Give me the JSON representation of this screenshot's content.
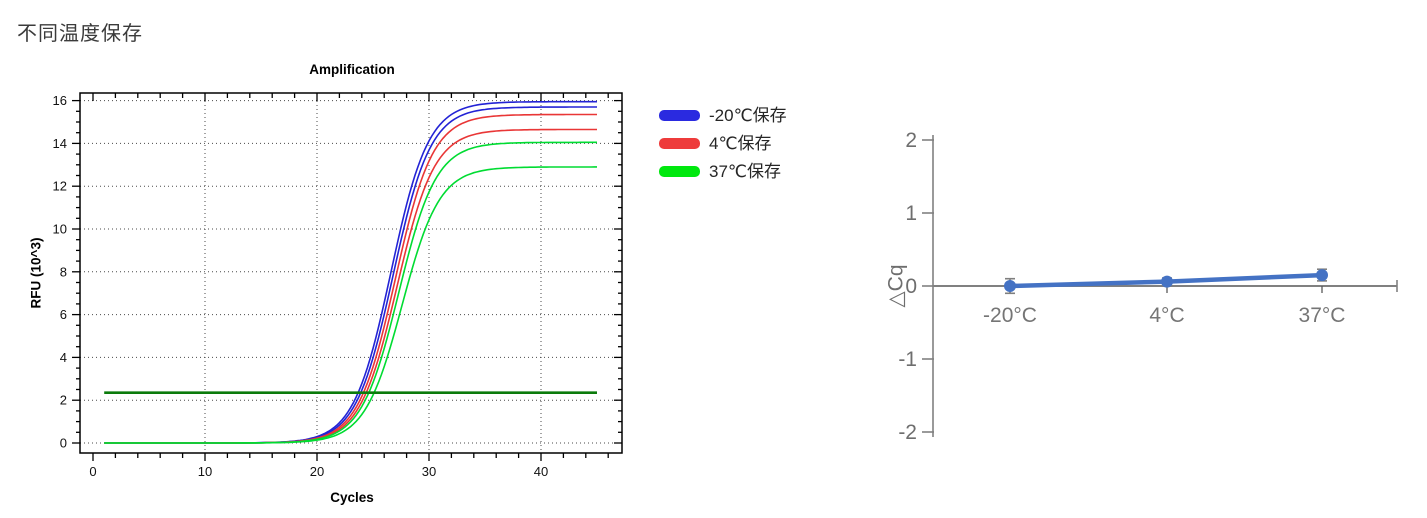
{
  "page": {
    "title": "不同温度保存"
  },
  "legend": {
    "items": [
      {
        "label": "-20℃保存",
        "color": "#2a2ae0"
      },
      {
        "label": "4℃保存",
        "color": "#ee3b3b"
      },
      {
        "label": "37℃保存",
        "color": "#00e80e"
      }
    ]
  },
  "chart_data": [
    {
      "id": "amplification",
      "type": "line",
      "title": "Amplification",
      "xlabel": "Cycles",
      "ylabel": "RFU (10^3)",
      "xlim": [
        -1.2,
        47.2
      ],
      "ylim": [
        -0.5,
        16.4
      ],
      "x_major_ticks": [
        0,
        10,
        20,
        30,
        40
      ],
      "x_minor_step": 2,
      "y_major_ticks": [
        0,
        2,
        4,
        6,
        8,
        10,
        12,
        14,
        16
      ],
      "y_minor_step": 0.5,
      "grid": "dotted",
      "sampling": {
        "x_start": 1,
        "x_end": 45,
        "step": 0.25
      },
      "series": [
        {
          "name": "-20℃保存 replicate 1",
          "group": "-20℃保存",
          "color": "#2323d5",
          "sigmoid": {
            "plateau": 15.95,
            "midpoint": 26.6,
            "slope": 0.6
          }
        },
        {
          "name": "-20℃保存 replicate 2",
          "group": "-20℃保存",
          "color": "#2323d5",
          "sigmoid": {
            "plateau": 15.7,
            "midpoint": 26.8,
            "slope": 0.6
          }
        },
        {
          "name": "4℃保存 replicate 1",
          "group": "4℃保存",
          "color": "#e93636",
          "sigmoid": {
            "plateau": 15.35,
            "midpoint": 27.0,
            "slope": 0.6
          }
        },
        {
          "name": "4℃保存 replicate 2",
          "group": "4℃保存",
          "color": "#e93636",
          "sigmoid": {
            "plateau": 14.65,
            "midpoint": 27.15,
            "slope": 0.6
          }
        },
        {
          "name": "37℃保存 replicate 1",
          "group": "37℃保存",
          "color": "#00dc32",
          "sigmoid": {
            "plateau": 14.05,
            "midpoint": 27.3,
            "slope": 0.6
          }
        },
        {
          "name": "37℃保存 replicate 2",
          "group": "37℃保存",
          "color": "#00dc32",
          "sigmoid": {
            "plateau": 12.9,
            "midpoint": 27.6,
            "slope": 0.6
          }
        }
      ],
      "threshold": {
        "y": 2.35,
        "x_start": 1,
        "x_end": 45,
        "color": "#0b7b0b"
      }
    },
    {
      "id": "delta-cq",
      "type": "line",
      "ylabel": "△Cq",
      "categories": [
        "-20°C",
        "4°C",
        "37°C"
      ],
      "values": [
        0.0,
        0.06,
        0.15
      ],
      "errors": [
        0.1,
        0.05,
        0.08
      ],
      "ylim": [
        -2,
        2
      ],
      "y_ticks": [
        2,
        1,
        0,
        -1,
        -2
      ],
      "line_color": "#4472c4",
      "axis_color": "#808080",
      "label_color": "#757575",
      "tick_label_color": "#6e6e6e"
    }
  ]
}
